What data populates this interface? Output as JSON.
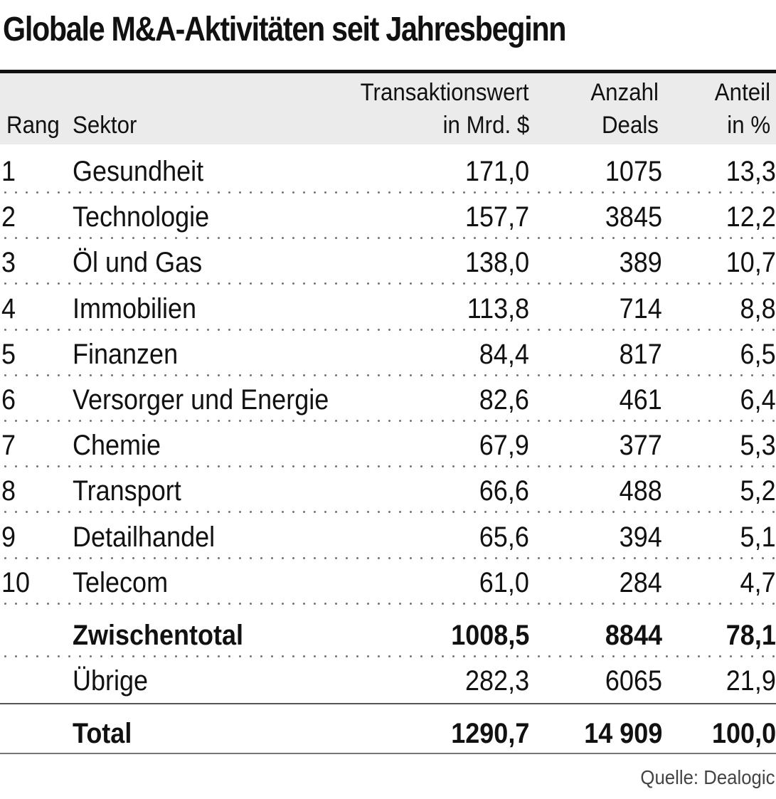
{
  "title": "Globale M&A-Aktivitäten seit Jahresbeginn",
  "source": "Quelle: Dealogic",
  "header": {
    "rank": "Rang",
    "sector": "Sektor",
    "value_line1": "Transaktionswert",
    "value_line2": "in Mrd. $",
    "deals_line1": "Anzahl",
    "deals_line2": "Deals",
    "share_line1": "Anteil",
    "share_line2": "in %"
  },
  "rows": [
    {
      "rank": "1",
      "sector": "Gesundheit",
      "value": "171,0",
      "deals": "1075",
      "share": "13,3"
    },
    {
      "rank": "2",
      "sector": "Technologie",
      "value": "157,7",
      "deals": "3845",
      "share": "12,2"
    },
    {
      "rank": "3",
      "sector": "Öl und Gas",
      "value": "138,0",
      "deals": "389",
      "share": "10,7"
    },
    {
      "rank": "4",
      "sector": "Immobilien",
      "value": "113,8",
      "deals": "714",
      "share": "8,8"
    },
    {
      "rank": "5",
      "sector": "Finanzen",
      "value": "84,4",
      "deals": "817",
      "share": "6,5"
    },
    {
      "rank": "6",
      "sector": "Versorger und Energie",
      "value": "82,6",
      "deals": "461",
      "share": "6,4"
    },
    {
      "rank": "7",
      "sector": "Chemie",
      "value": "67,9",
      "deals": "377",
      "share": "5,3"
    },
    {
      "rank": "8",
      "sector": "Transport",
      "value": "66,6",
      "deals": "488",
      "share": "5,2"
    },
    {
      "rank": "9",
      "sector": "Detailhandel",
      "value": "65,6",
      "deals": "394",
      "share": "5,1"
    },
    {
      "rank": "10",
      "sector": "Telecom",
      "value": "61,0",
      "deals": "284",
      "share": "4,7"
    }
  ],
  "subtotal": {
    "label": "Zwischentotal",
    "value": "1008,5",
    "deals": "8844",
    "share": "78,1"
  },
  "other": {
    "label": "Übrige",
    "value": "282,3",
    "deals": "6065",
    "share": "21,9"
  },
  "total": {
    "label": "Total",
    "value": "1290,7",
    "deals": "14 909",
    "share": "100,0"
  },
  "chart_data": {
    "type": "table",
    "title": "Globale M&A-Aktivitäten seit Jahresbeginn",
    "columns": [
      "Rang",
      "Sektor",
      "Transaktionswert in Mrd. $",
      "Anzahl Deals",
      "Anteil in %"
    ],
    "rows": [
      [
        1,
        "Gesundheit",
        171.0,
        1075,
        13.3
      ],
      [
        2,
        "Technologie",
        157.7,
        3845,
        12.2
      ],
      [
        3,
        "Öl und Gas",
        138.0,
        389,
        10.7
      ],
      [
        4,
        "Immobilien",
        113.8,
        714,
        8.8
      ],
      [
        5,
        "Finanzen",
        84.4,
        817,
        6.5
      ],
      [
        6,
        "Versorger und Energie",
        82.6,
        461,
        6.4
      ],
      [
        7,
        "Chemie",
        67.9,
        377,
        5.3
      ],
      [
        8,
        "Transport",
        66.6,
        488,
        5.2
      ],
      [
        9,
        "Detailhandel",
        65.6,
        394,
        5.1
      ],
      [
        10,
        "Telecom",
        61.0,
        284,
        4.7
      ],
      [
        null,
        "Zwischentotal",
        1008.5,
        8844,
        78.1
      ],
      [
        null,
        "Übrige",
        282.3,
        6065,
        21.9
      ],
      [
        null,
        "Total",
        1290.7,
        14909,
        100.0
      ]
    ],
    "source": "Quelle: Dealogic"
  }
}
